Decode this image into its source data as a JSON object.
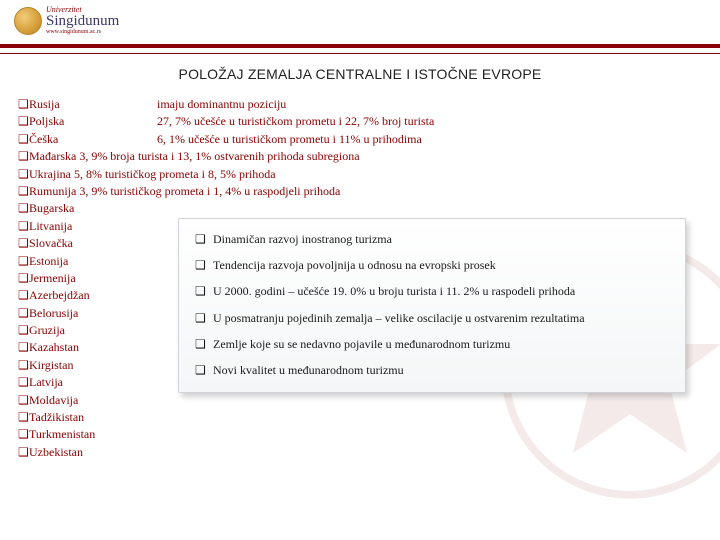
{
  "brand": {
    "top": "Univerzitet",
    "name": "Singidunum",
    "sub": "www.singidunum.ac.rs"
  },
  "title": "POLOŽAJ ZEMALJA CENTRALNE I ISTOČNE EVROPE",
  "colors": {
    "accent": "#8a0000",
    "text": "#1a1a1a",
    "callout_border": "#d0d4d8"
  },
  "list": [
    {
      "country": "Rusija",
      "desc": "imaju dominantnu poziciju"
    },
    {
      "country": "Poljska",
      "desc": "27, 7% učešće u turističkom prometu i 22, 7% broj turista"
    },
    {
      "country": "Češka",
      "desc": "6, 1% učešće u turističkom prometu i 11% u prihodima"
    },
    {
      "country": "Mađarska 3, 9% broja turista i 13, 1% ostvarenih prihoda subregiona",
      "full": true
    },
    {
      "country": "Ukrajina   5, 8% turističkog prometa i 8, 5% prihoda",
      "full": true
    },
    {
      "country": "Rumunija 3, 9% turističkog prometa i 1, 4% u raspodjeli prihoda",
      "full": true
    },
    {
      "country": "Bugarska",
      "full": true
    },
    {
      "country": "Litvanija",
      "full": true
    },
    {
      "country": "Slovačka",
      "full": true
    },
    {
      "country": "Estonija",
      "full": true
    },
    {
      "country": "Jermenija",
      "full": true
    },
    {
      "country": "Azerbejdžan",
      "full": true
    },
    {
      "country": "Belorusija",
      "full": true
    },
    {
      "country": "Gruzija",
      "full": true
    },
    {
      "country": "Kazahstan",
      "full": true
    },
    {
      "country": "Kirgistan",
      "full": true
    },
    {
      "country": "Latvija",
      "full": true
    },
    {
      "country": "Moldavija",
      "full": true
    },
    {
      "country": "Tadžikistan",
      "full": true
    },
    {
      "country": "Turkmenistan",
      "full": true
    },
    {
      "country": "Uzbekistan",
      "full": true
    }
  ],
  "callout": [
    "Dinamičan razvoj inostranog turizma",
    "Tendencija razvoja povoljnija u odnosu na evropski prosek",
    "U 2000. godini – učešće 19. 0% u broju turista i 11. 2% u raspodeli prihoda",
    "U posmatranju pojedinih zemalja – velike oscilacije u ostvarenim rezultatima",
    "Zemlje koje su se nedavno pojavile u međunarodnom turizmu",
    "Novi kvalitet u međunarodnom turizmu"
  ]
}
